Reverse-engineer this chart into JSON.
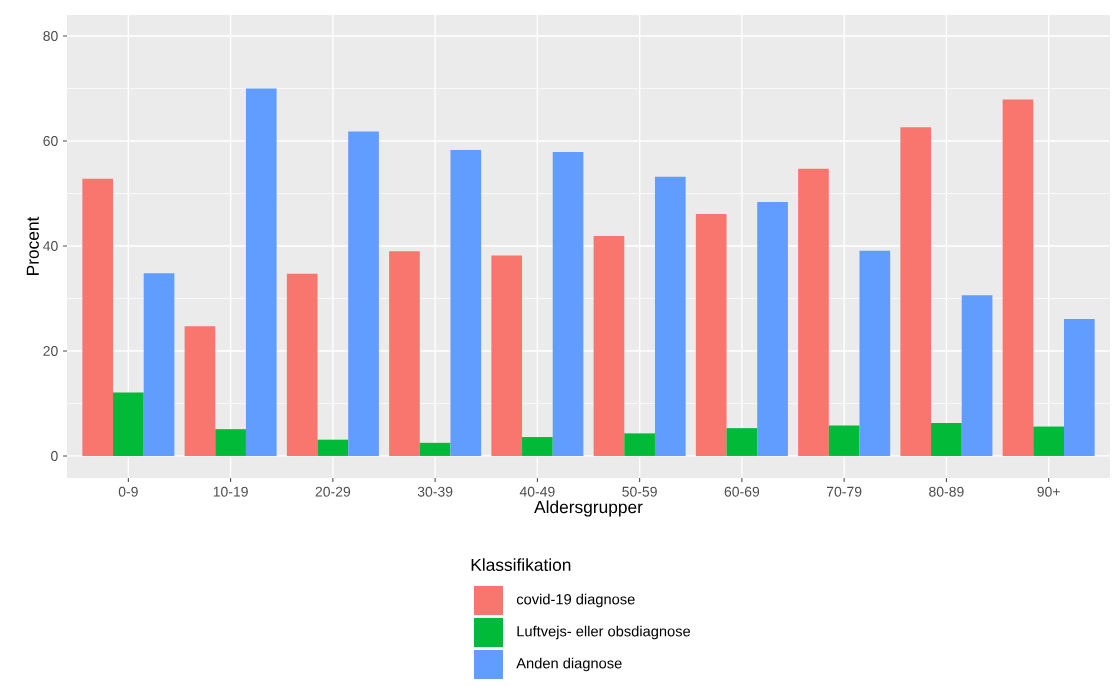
{
  "chart_data": {
    "type": "bar",
    "xlabel": "Aldersgrupper",
    "ylabel": "Procent",
    "legend_title": "Klassifikation",
    "categories": [
      "0-9",
      "10-19",
      "20-29",
      "30-39",
      "40-49",
      "50-59",
      "60-69",
      "70-79",
      "80-89",
      "90+"
    ],
    "series": [
      {
        "name": "covid-19 diagnose",
        "color": "#f8766d",
        "values": [
          52.8,
          24.7,
          34.7,
          39.0,
          38.2,
          41.9,
          46.1,
          54.7,
          62.6,
          67.9
        ]
      },
      {
        "name": "Luftvejs- eller obsdiagnose",
        "color": "#00ba38",
        "values": [
          12.1,
          5.1,
          3.1,
          2.5,
          3.6,
          4.3,
          5.3,
          5.8,
          6.3,
          5.6
        ]
      },
      {
        "name": "Anden diagnose",
        "color": "#619cff",
        "values": [
          34.8,
          70.0,
          61.8,
          58.3,
          57.9,
          53.2,
          48.4,
          39.1,
          30.6,
          26.1
        ]
      }
    ],
    "ylim": [
      -4.2,
      84
    ],
    "yticks": [
      0,
      20,
      40,
      60,
      80
    ],
    "grid": true,
    "legend": "bottom"
  }
}
